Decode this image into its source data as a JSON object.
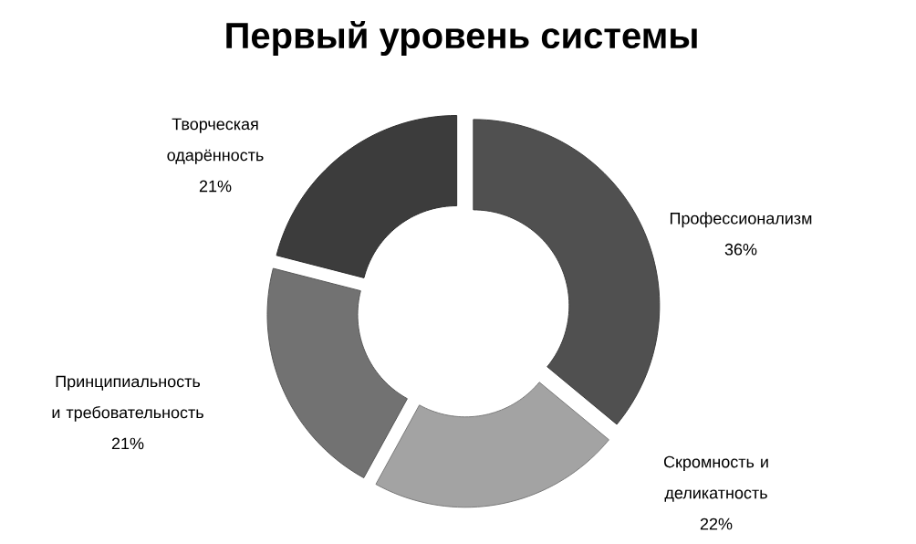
{
  "chart_data": {
    "type": "donut",
    "title": "Первый уровень системы",
    "categories": [
      "Профессионализм",
      "Скромность и деликатность",
      "Принципиальность и требовательность",
      "Творческая одарённость"
    ],
    "values": [
      36,
      22,
      21,
      21
    ],
    "colors": [
      "#505050",
      "#a3a3a3",
      "#727272",
      "#3c3c3c"
    ],
    "value_labels": [
      "36%",
      "22%",
      "21%",
      "21%"
    ]
  }
}
